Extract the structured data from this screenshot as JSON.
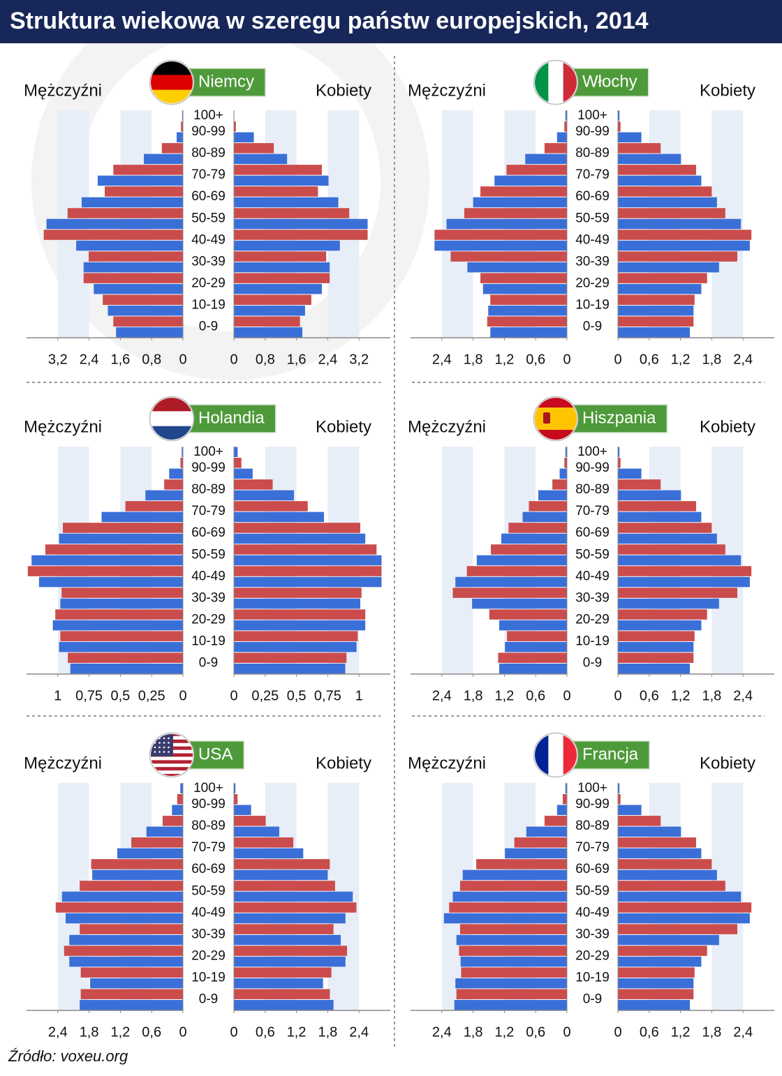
{
  "title": "Struktura wiekowa w szeregu państw europejskich, 2014",
  "source": "Źródło: voxeu.org",
  "chart_data": [
    {
      "type": "pyramid",
      "title": "Niemcy",
      "categories": [
        "0-9",
        null,
        "10-19",
        null,
        "20-29",
        null,
        "30-39",
        null,
        "40-49",
        null,
        "50-59",
        null,
        "60-69",
        null,
        "70-79",
        null,
        "80-89",
        null,
        "90-99",
        null,
        "100+"
      ],
      "colors": [
        "#3b6fd8",
        "#cb4c4c"
      ],
      "xlim": [
        0,
        4
      ],
      "xticks": [
        0,
        {
          "value": 0.8,
          "label": "0,8"
        },
        {
          "value": 1.6,
          "label": "1,6"
        },
        {
          "value": 2.4,
          "label": "2,4"
        },
        {
          "value": 3.2,
          "label": "3,2"
        }
      ],
      "series": [
        {
          "name": "Mężczyźni",
          "side": "left",
          "values": [
            1.71,
            1.78,
            1.92,
            2.05,
            2.28,
            2.54,
            2.54,
            2.41,
            2.73,
            3.56,
            3.49,
            2.95,
            2.59,
            2.0,
            2.18,
            1.78,
            1.0,
            0.54,
            0.16,
            0.05,
            0.02
          ]
        },
        {
          "name": "Kobiety",
          "side": "right",
          "values": [
            1.75,
            1.69,
            1.82,
            1.98,
            2.25,
            2.45,
            2.45,
            2.36,
            2.71,
            3.42,
            3.42,
            2.95,
            2.67,
            2.15,
            2.42,
            2.25,
            1.36,
            1.02,
            0.51,
            0.05,
            0.01
          ]
        }
      ]
    },
    {
      "type": "pyramid",
      "title": "Włochy",
      "categories": [
        "0-9",
        null,
        "10-19",
        null,
        "20-29",
        null,
        "30-39",
        null,
        "40-49",
        null,
        "50-59",
        null,
        "60-69",
        null,
        "70-79",
        null,
        "80-89",
        null,
        "90-99",
        null,
        "100+"
      ],
      "colors": [
        "#3b6fd8",
        "#cb4c4c"
      ],
      "xlim": [
        0,
        3
      ],
      "xticks": [
        0,
        {
          "value": 0.6,
          "label": "0,6"
        },
        {
          "value": 1.2,
          "label": "1,2"
        },
        {
          "value": 1.8,
          "label": "1,8"
        },
        {
          "value": 2.4,
          "label": "2,4"
        }
      ],
      "series": [
        {
          "name": "Mężczyźni",
          "side": "left",
          "values": [
            1.47,
            1.53,
            1.51,
            1.47,
            1.61,
            1.66,
            1.91,
            2.23,
            2.54,
            2.54,
            2.31,
            1.97,
            1.8,
            1.66,
            1.39,
            1.16,
            0.8,
            0.43,
            0.19,
            0.05,
            0.03
          ]
        },
        {
          "name": "Kobiety",
          "side": "right",
          "values": [
            1.38,
            1.45,
            1.45,
            1.47,
            1.6,
            1.71,
            1.94,
            2.29,
            2.53,
            2.56,
            2.36,
            2.06,
            1.9,
            1.8,
            1.6,
            1.5,
            1.21,
            0.82,
            0.45,
            0.05,
            0.03
          ]
        }
      ]
    },
    {
      "type": "pyramid",
      "title": "Holandia",
      "categories": [
        "0-9",
        null,
        "10-19",
        null,
        "20-29",
        null,
        "30-39",
        null,
        "40-49",
        null,
        "50-59",
        null,
        "60-69",
        null,
        "70-79",
        null,
        "80-89",
        null,
        "90-99",
        null,
        "100+"
      ],
      "colors": [
        "#3b6fd8",
        "#cb4c4c"
      ],
      "xlim": [
        0,
        1.25
      ],
      "xticks": [
        0,
        {
          "value": 0.25,
          "label": "0,25"
        },
        {
          "value": 0.5,
          "label": "0,5"
        },
        {
          "value": 0.75,
          "label": "0,75"
        },
        1
      ],
      "series": [
        {
          "name": "Mężczyźni",
          "side": "left",
          "values": [
            0.9,
            0.92,
            0.99,
            0.98,
            1.04,
            1.02,
            0.98,
            0.97,
            1.15,
            1.24,
            1.21,
            1.1,
            0.99,
            0.96,
            0.65,
            0.46,
            0.3,
            0.15,
            0.11,
            0.02,
            0.01
          ]
        },
        {
          "name": "Kobiety",
          "side": "right",
          "values": [
            0.89,
            0.9,
            0.98,
            0.99,
            1.05,
            1.05,
            1.01,
            1.02,
            1.18,
            1.18,
            1.18,
            1.14,
            1.05,
            1.01,
            0.72,
            0.59,
            0.48,
            0.31,
            0.15,
            0.06,
            0.03
          ]
        }
      ]
    },
    {
      "type": "pyramid",
      "title": "Hiszpania",
      "categories": [
        "0-9",
        null,
        "10-19",
        null,
        "20-29",
        null,
        "30-39",
        null,
        "40-49",
        null,
        "50-59",
        null,
        "60-69",
        null,
        "70-79",
        null,
        "80-89",
        null,
        "90-99",
        null,
        "100+"
      ],
      "colors": [
        "#3b6fd8",
        "#cb4c4c"
      ],
      "xlim": [
        0,
        3
      ],
      "xticks": [
        0,
        {
          "value": 0.6,
          "label": "0,6"
        },
        {
          "value": 1.2,
          "label": "1,2"
        },
        {
          "value": 1.8,
          "label": "1,8"
        },
        {
          "value": 2.4,
          "label": "2,4"
        }
      ],
      "series": [
        {
          "name": "Mężczyźni",
          "side": "left",
          "values": [
            1.3,
            1.32,
            1.19,
            1.15,
            1.3,
            1.49,
            1.82,
            2.19,
            2.14,
            1.92,
            1.73,
            1.46,
            1.26,
            1.12,
            0.85,
            0.73,
            0.55,
            0.28,
            0.14,
            0.05,
            0.03
          ]
        },
        {
          "name": "Kobiety",
          "side": "right",
          "values": [
            1.38,
            1.45,
            1.45,
            1.47,
            1.6,
            1.71,
            1.94,
            2.29,
            2.53,
            2.56,
            2.36,
            2.06,
            1.9,
            1.8,
            1.6,
            1.5,
            1.21,
            0.82,
            0.45,
            0.05,
            0.03
          ]
        }
      ]
    },
    {
      "type": "pyramid",
      "title": "USA",
      "categories": [
        "0-9",
        null,
        "10-19",
        null,
        "20-29",
        null,
        "30-39",
        null,
        "40-49",
        null,
        "50-59",
        null,
        "60-69",
        null,
        "70-79",
        null,
        "80-89",
        null,
        "90-99",
        null,
        "100+"
      ],
      "colors": [
        "#3b6fd8",
        "#cb4c4c"
      ],
      "xlim": [
        0,
        3
      ],
      "xticks": [
        0,
        {
          "value": 0.6,
          "label": "0,6"
        },
        {
          "value": 1.2,
          "label": "1,2"
        },
        {
          "value": 1.8,
          "label": "1,8"
        },
        {
          "value": 2.4,
          "label": "2,4"
        }
      ],
      "series": [
        {
          "name": "Mężczyźni",
          "side": "left",
          "values": [
            1.98,
            1.96,
            1.78,
            1.96,
            2.18,
            2.28,
            2.18,
            1.98,
            2.25,
            2.44,
            2.32,
            1.98,
            1.74,
            1.76,
            1.26,
            0.99,
            0.7,
            0.39,
            0.21,
            0.11,
            0.05
          ]
        },
        {
          "name": "Kobiety",
          "side": "right",
          "values": [
            1.91,
            1.84,
            1.71,
            1.87,
            2.14,
            2.17,
            2.05,
            1.91,
            2.14,
            2.35,
            2.28,
            1.94,
            1.8,
            1.84,
            1.33,
            1.14,
            0.87,
            0.61,
            0.33,
            0.07,
            0.03
          ]
        }
      ]
    },
    {
      "type": "pyramid",
      "title": "Francja",
      "categories": [
        "0-9",
        null,
        "10-19",
        null,
        "20-29",
        null,
        "30-39",
        null,
        "40-49",
        null,
        "50-59",
        null,
        "60-69",
        null,
        "70-79",
        null,
        "80-89",
        null,
        "90-99",
        null,
        "100+"
      ],
      "colors": [
        "#3b6fd8",
        "#cb4c4c"
      ],
      "xlim": [
        0,
        3
      ],
      "xticks": [
        0,
        {
          "value": 0.6,
          "label": "0,6"
        },
        {
          "value": 1.2,
          "label": "1,2"
        },
        {
          "value": 1.8,
          "label": "1,8"
        },
        {
          "value": 2.4,
          "label": "2,4"
        }
      ],
      "series": [
        {
          "name": "Mężczyźni",
          "side": "left",
          "values": [
            2.16,
            2.12,
            2.14,
            2.03,
            2.04,
            2.07,
            2.12,
            2.05,
            2.36,
            2.26,
            2.19,
            2.05,
            2.0,
            1.74,
            1.19,
            1.01,
            0.78,
            0.43,
            0.19,
            0.08,
            0.03
          ]
        },
        {
          "name": "Kobiety",
          "side": "right",
          "values": [
            1.38,
            1.45,
            1.45,
            1.47,
            1.6,
            1.71,
            1.94,
            2.29,
            2.53,
            2.56,
            2.36,
            2.06,
            1.9,
            1.8,
            1.6,
            1.5,
            1.21,
            0.82,
            0.45,
            0.05,
            0.03
          ]
        }
      ]
    }
  ]
}
